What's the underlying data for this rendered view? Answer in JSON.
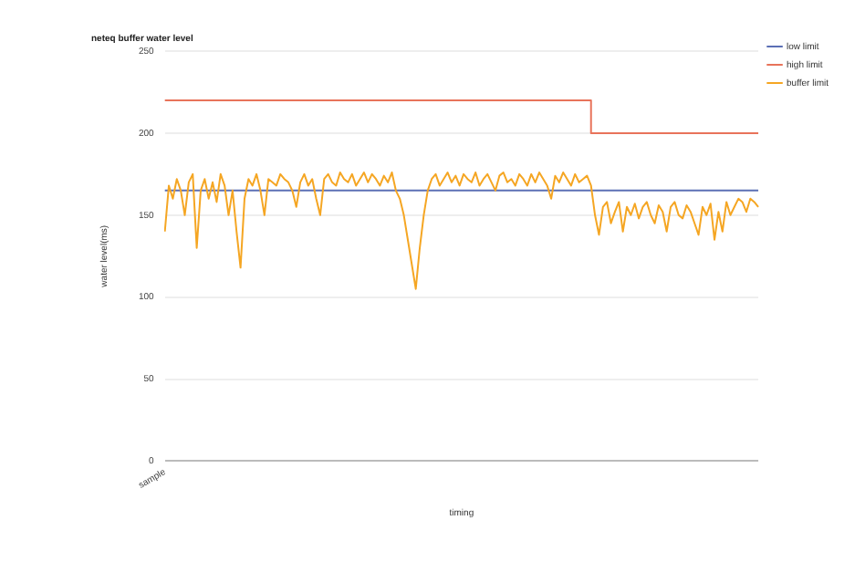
{
  "chart_data": {
    "type": "line",
    "title": "neteq buffer water level",
    "xlabel": "timing",
    "ylabel": "water level(ms)",
    "categories": [
      "sample",
      null,
      null,
      null,
      null,
      null,
      null,
      null,
      null,
      null,
      null,
      null,
      null,
      null,
      null,
      null,
      null,
      null,
      null,
      null,
      null,
      null,
      null,
      null,
      null,
      null,
      null,
      null,
      null,
      null,
      null,
      null,
      null,
      null,
      null,
      null,
      null,
      null,
      null,
      null,
      null,
      null,
      null,
      null,
      null,
      null,
      null,
      null,
      null,
      null,
      null,
      null,
      null,
      null,
      null,
      null,
      null,
      null,
      null,
      null,
      null,
      null,
      null,
      null,
      null,
      null,
      null,
      null,
      null,
      null,
      null,
      null,
      null,
      null,
      null,
      null,
      null,
      null,
      null,
      null,
      null,
      null,
      null,
      null,
      null,
      null,
      null,
      null,
      null,
      null,
      null,
      null,
      null,
      null,
      null,
      null,
      null,
      null,
      null,
      null,
      null,
      null,
      null,
      null,
      null,
      null,
      null,
      null,
      null,
      null,
      null,
      null,
      null,
      null,
      null,
      null,
      null,
      null,
      null,
      null,
      null,
      null,
      null,
      null,
      null,
      null,
      null,
      null,
      null,
      null,
      null,
      null,
      null,
      null,
      null,
      null,
      null,
      null,
      null,
      null,
      null,
      null,
      null,
      null,
      null,
      null,
      null,
      null,
      null,
      null
    ],
    "series": [
      {
        "name": "low limit",
        "color": "#5b6fb5",
        "values": [
          165,
          165,
          165,
          165,
          165,
          165,
          165,
          165,
          165,
          165,
          165,
          165,
          165,
          165,
          165,
          165,
          165,
          165,
          165,
          165,
          165,
          165,
          165,
          165,
          165,
          165,
          165,
          165,
          165,
          165,
          165,
          165,
          165,
          165,
          165,
          165,
          165,
          165,
          165,
          165,
          165,
          165,
          165,
          165,
          165,
          165,
          165,
          165,
          165,
          165,
          165,
          165,
          165,
          165,
          165,
          165,
          165,
          165,
          165,
          165,
          165,
          165,
          165,
          165,
          165,
          165,
          165,
          165,
          165,
          165,
          165,
          165,
          165,
          165,
          165,
          165,
          165,
          165,
          165,
          165,
          165,
          165,
          165,
          165,
          165,
          165,
          165,
          165,
          165,
          165,
          165,
          165,
          165,
          165,
          165,
          165,
          165,
          165,
          165,
          165,
          165,
          165,
          165,
          165,
          165,
          165,
          165,
          165,
          165,
          165,
          165,
          165,
          165,
          165,
          165,
          165,
          165,
          165,
          165,
          165,
          165,
          165,
          165,
          165,
          165,
          165,
          165,
          165,
          165,
          165,
          165,
          165,
          165,
          165,
          165,
          165,
          165,
          165,
          165,
          165,
          165,
          165,
          165,
          165,
          165,
          165,
          165,
          165,
          165,
          165
        ]
      },
      {
        "name": "high limit",
        "type": "step",
        "color": "#e8735a",
        "values": [
          220,
          220,
          220,
          220,
          220,
          220,
          220,
          220,
          220,
          220,
          220,
          220,
          220,
          220,
          220,
          220,
          220,
          220,
          220,
          220,
          220,
          220,
          220,
          220,
          220,
          220,
          220,
          220,
          220,
          220,
          220,
          220,
          220,
          220,
          220,
          220,
          220,
          220,
          220,
          220,
          220,
          220,
          220,
          220,
          220,
          220,
          220,
          220,
          220,
          220,
          220,
          220,
          220,
          220,
          220,
          220,
          220,
          220,
          220,
          220,
          220,
          220,
          220,
          220,
          220,
          220,
          220,
          220,
          220,
          220,
          220,
          220,
          220,
          220,
          220,
          220,
          220,
          220,
          220,
          220,
          220,
          220,
          220,
          220,
          220,
          220,
          220,
          220,
          220,
          220,
          220,
          220,
          220,
          220,
          220,
          220,
          220,
          220,
          220,
          220,
          220,
          220,
          220,
          220,
          220,
          220,
          220,
          220,
          200,
          200,
          200,
          200,
          200,
          200,
          200,
          200,
          200,
          200,
          200,
          200,
          200,
          200,
          200,
          200,
          200,
          200,
          200,
          200,
          200,
          200,
          200,
          200,
          200,
          200,
          200,
          200,
          200,
          200,
          200,
          200,
          200,
          200,
          200,
          200,
          200,
          200,
          200,
          200,
          200,
          200
        ]
      },
      {
        "name": "buffer limit",
        "color": "#f5a623",
        "values": [
          140,
          168,
          160,
          172,
          165,
          150,
          170,
          175,
          130,
          165,
          172,
          160,
          170,
          158,
          175,
          168,
          150,
          165,
          140,
          118,
          160,
          172,
          168,
          175,
          165,
          150,
          172,
          170,
          168,
          175,
          172,
          170,
          165,
          155,
          170,
          175,
          168,
          172,
          160,
          150,
          172,
          175,
          170,
          168,
          176,
          172,
          170,
          175,
          168,
          172,
          176,
          170,
          175,
          172,
          168,
          174,
          170,
          176,
          165,
          160,
          150,
          135,
          120,
          105,
          130,
          150,
          165,
          172,
          175,
          168,
          172,
          176,
          170,
          174,
          168,
          175,
          172,
          170,
          176,
          168,
          172,
          175,
          170,
          165,
          174,
          176,
          170,
          172,
          168,
          175,
          172,
          168,
          175,
          170,
          176,
          172,
          168,
          160,
          174,
          170,
          176,
          172,
          168,
          175,
          170,
          172,
          174,
          168,
          150,
          138,
          155,
          158,
          145,
          152,
          158,
          140,
          155,
          150,
          157,
          148,
          155,
          158,
          150,
          145,
          156,
          152,
          140,
          155,
          158,
          150,
          148,
          156,
          152,
          145,
          138,
          155,
          150,
          157,
          135,
          152,
          140,
          158,
          150,
          155,
          160,
          158,
          152,
          160,
          158,
          155
        ]
      }
    ],
    "ylim": [
      0,
      250
    ],
    "yticks": [
      0,
      50,
      100,
      150,
      200,
      250
    ],
    "grid": "y",
    "legend": "top right",
    "marker": "none",
    "line_style": "solid"
  }
}
